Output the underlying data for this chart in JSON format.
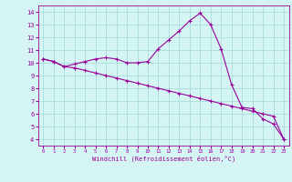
{
  "xlabel": "Windchill (Refroidissement éolien,°C)",
  "line1_x": [
    0,
    1,
    2,
    3,
    4,
    5,
    6,
    7,
    8,
    9,
    10,
    11,
    12,
    13,
    14,
    15,
    16,
    17,
    18,
    19,
    20,
    21,
    22,
    23
  ],
  "line1_y": [
    10.3,
    10.1,
    9.7,
    9.9,
    10.1,
    10.3,
    10.4,
    10.3,
    10.0,
    10.0,
    10.1,
    11.1,
    11.8,
    12.5,
    13.3,
    13.9,
    13.0,
    11.1,
    8.3,
    6.5,
    6.4,
    5.6,
    5.2,
    4.0
  ],
  "line2_x": [
    0,
    1,
    2,
    3,
    4,
    5,
    6,
    7,
    8,
    9,
    10,
    11,
    12,
    13,
    14,
    15,
    16,
    17,
    18,
    19,
    20,
    21,
    22,
    23
  ],
  "line2_y": [
    10.3,
    10.1,
    9.7,
    9.6,
    9.4,
    9.2,
    9.0,
    8.8,
    8.6,
    8.4,
    8.2,
    8.0,
    7.8,
    7.6,
    7.4,
    7.2,
    7.0,
    6.8,
    6.6,
    6.4,
    6.2,
    6.0,
    5.8,
    4.0
  ],
  "line_color": "#990099",
  "bg_color": "#d5f5f5",
  "grid_color": "#aadddd",
  "ylim": [
    3.5,
    14.5
  ],
  "xlim": [
    -0.5,
    23.5
  ],
  "yticks": [
    4,
    5,
    6,
    7,
    8,
    9,
    10,
    11,
    12,
    13,
    14
  ],
  "xticks": [
    0,
    1,
    2,
    3,
    4,
    5,
    6,
    7,
    8,
    9,
    10,
    11,
    12,
    13,
    14,
    15,
    16,
    17,
    18,
    19,
    20,
    21,
    22,
    23
  ]
}
